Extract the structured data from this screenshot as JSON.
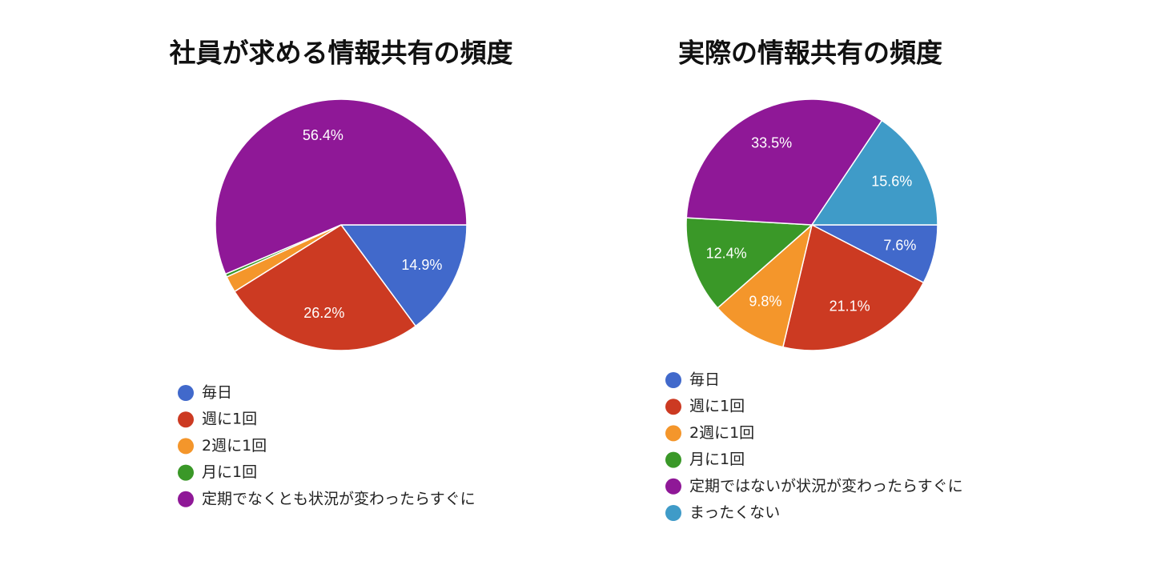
{
  "chart_data": [
    {
      "type": "pie",
      "title": "社員が求める情報共有の頻度",
      "categories": [
        "毎日",
        "週に1回",
        "2週に1回",
        "月に1回",
        "定期でなくとも状況が変わったらすぐに"
      ],
      "values": [
        14.9,
        26.2,
        2.1,
        0.4,
        56.4
      ],
      "value_labels": [
        "14.9%",
        "26.2%",
        null,
        null,
        "56.4%"
      ],
      "colors": [
        "#4169cb",
        "#cc3a22",
        "#f4962b",
        "#3a9828",
        "#8f1897"
      ]
    },
    {
      "type": "pie",
      "title": "実際の情報共有の頻度",
      "categories": [
        "毎日",
        "週に1回",
        "2週に1回",
        "月に1回",
        "定期ではないが状況が変わったらすぐに",
        "まったくない"
      ],
      "values": [
        7.6,
        21.1,
        9.8,
        12.4,
        33.5,
        15.6
      ],
      "value_labels": [
        "7.6%",
        "21.1%",
        "9.8%",
        "12.4%",
        "33.5%",
        "15.6%"
      ],
      "colors": [
        "#4169cb",
        "#cc3a22",
        "#f4962b",
        "#3a9828",
        "#8f1897",
        "#3f9bc8"
      ]
    }
  ]
}
